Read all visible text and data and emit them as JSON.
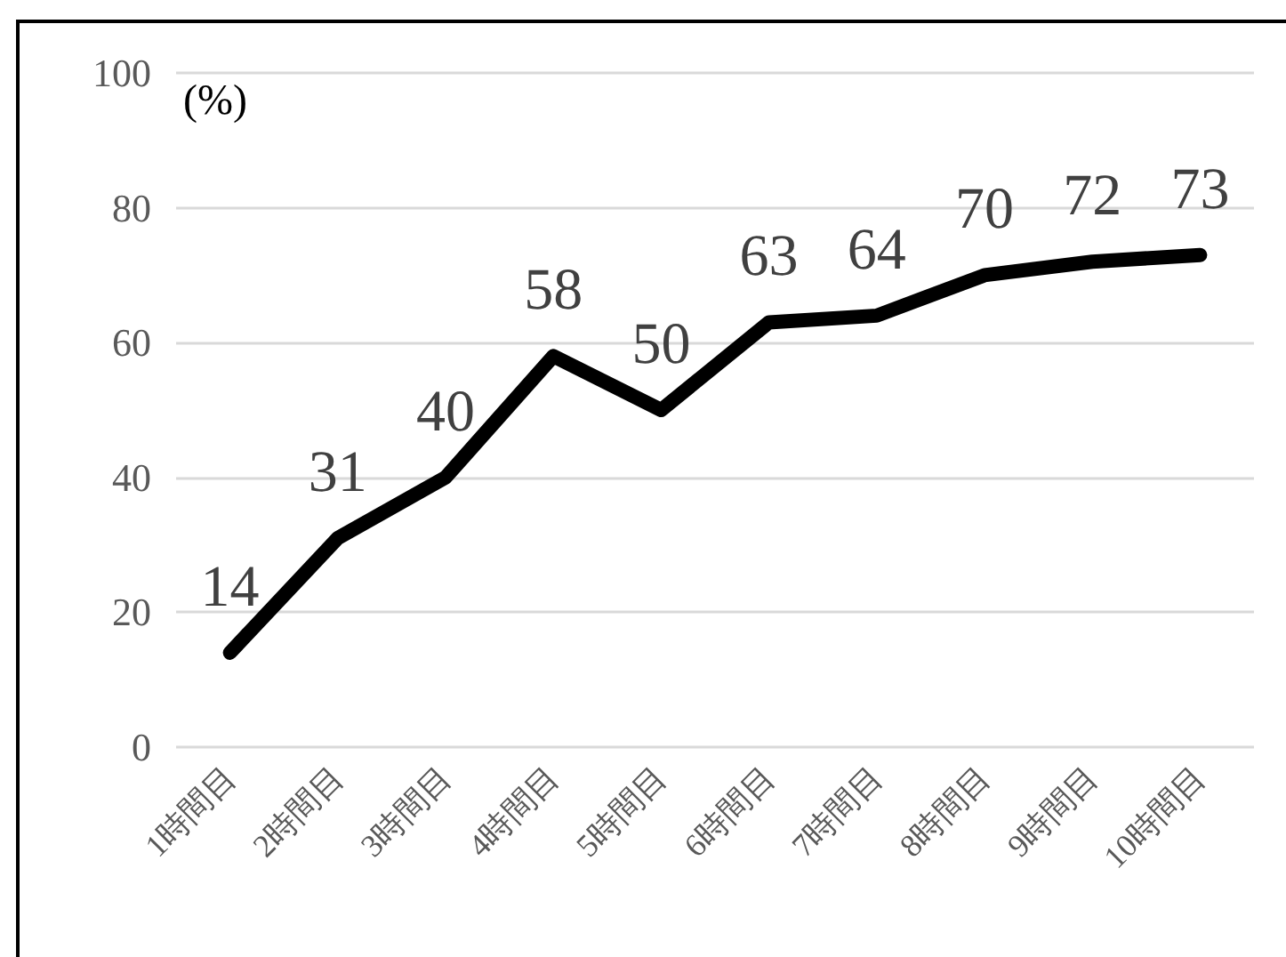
{
  "chart_data": {
    "type": "line",
    "ylabel": "(%)",
    "categories": [
      "1時間目",
      "2時間目",
      "3時間目",
      "4時間目",
      "5時間目",
      "6時間目",
      "7時間目",
      "8時間目",
      "9時間目",
      "10時間目"
    ],
    "series": [
      {
        "color": "#000000",
        "values": [
          14,
          31,
          40,
          58,
          50,
          63,
          64,
          70,
          72,
          73
        ]
      }
    ],
    "ylim": [
      0,
      100
    ],
    "yticks": [
      0,
      20,
      40,
      60,
      80,
      100
    ],
    "grid": "y",
    "data_labels": true,
    "marker": "none",
    "line_style": "solid"
  }
}
